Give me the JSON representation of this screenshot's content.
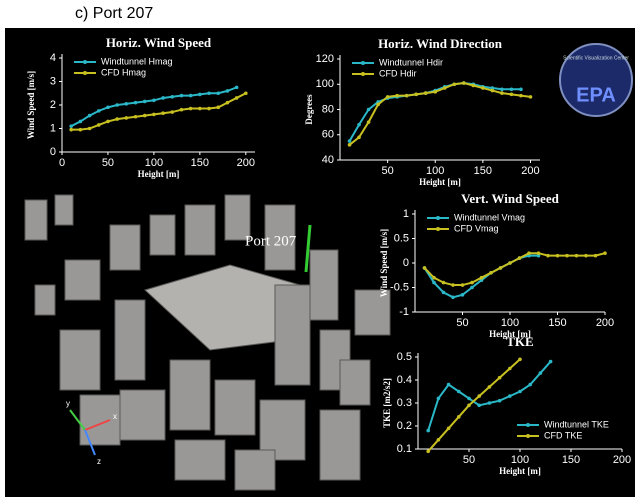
{
  "caption": "c) Port 207",
  "scene_label": "Port 207",
  "axes_labels": [
    "y",
    "x",
    "z"
  ],
  "logo": {
    "ring_text": "Scientific Visualization Center",
    "name": "EPA"
  },
  "chart_data": [
    {
      "type": "line",
      "title": "Horiz. Wind Speed",
      "x_label": "Height [m]",
      "y_label": "Wind Speed [m/s]",
      "x": [
        10,
        20,
        30,
        40,
        50,
        60,
        70,
        80,
        90,
        100,
        110,
        120,
        130,
        140,
        150,
        160,
        170,
        180,
        190,
        200
      ],
      "series": [
        {
          "name": "Windtunnel Hmag",
          "color": "#2ab8c8",
          "values": [
            1.1,
            1.3,
            1.55,
            1.75,
            1.9,
            2.0,
            2.05,
            2.1,
            2.15,
            2.2,
            2.3,
            2.35,
            2.4,
            2.4,
            2.45,
            2.5,
            2.5,
            2.6,
            2.75,
            null
          ]
        },
        {
          "name": "CFD Hmag",
          "color": "#c8c020",
          "values": [
            0.95,
            0.95,
            1.0,
            1.15,
            1.3,
            1.4,
            1.45,
            1.5,
            1.55,
            1.6,
            1.65,
            1.7,
            1.8,
            1.85,
            1.85,
            1.85,
            1.9,
            2.1,
            2.3,
            2.5
          ]
        }
      ],
      "xlim": [
        0,
        210
      ],
      "ylim": [
        0,
        4
      ],
      "xticks": [
        0,
        50,
        100,
        150,
        200
      ],
      "yticks": [
        0,
        1,
        2,
        3,
        4
      ],
      "legend": "upper left"
    },
    {
      "type": "line",
      "title": "Horiz. Wind Direction",
      "x_label": "Height [m]",
      "y_label": "Degrees",
      "x": [
        10,
        20,
        30,
        40,
        50,
        60,
        70,
        80,
        90,
        100,
        110,
        120,
        130,
        140,
        150,
        160,
        170,
        180,
        190,
        200
      ],
      "series": [
        {
          "name": "Windtunnel Hdir",
          "color": "#2ab8c8",
          "values": [
            55,
            68,
            80,
            86,
            89,
            90,
            91,
            92,
            93,
            95,
            98,
            100,
            101,
            100,
            98,
            97,
            96,
            96,
            96,
            null
          ]
        },
        {
          "name": "CFD Hdir",
          "color": "#c8c020",
          "values": [
            52,
            58,
            70,
            84,
            90,
            91,
            91,
            92,
            93,
            94,
            97,
            100,
            101,
            99,
            97,
            95,
            93,
            92,
            91,
            90
          ]
        }
      ],
      "xlim": [
        0,
        210
      ],
      "ylim": [
        40,
        120
      ],
      "xticks": [
        50,
        100,
        150,
        200
      ],
      "yticks": [
        40,
        60,
        80,
        100,
        120
      ],
      "legend": "upper left"
    },
    {
      "type": "line",
      "title": "Vert. Wind Speed",
      "x_label": "Height [m]",
      "y_label": "Wind Speed [m/s]",
      "x": [
        10,
        20,
        30,
        40,
        50,
        60,
        70,
        80,
        90,
        100,
        110,
        120,
        130,
        140,
        150,
        160,
        170,
        180,
        190,
        200
      ],
      "series": [
        {
          "name": "Windtunnel Vmag",
          "color": "#2ab8c8",
          "values": [
            -0.1,
            -0.4,
            -0.6,
            -0.7,
            -0.65,
            -0.5,
            -0.35,
            -0.2,
            -0.1,
            0,
            0.1,
            0.15,
            0.15,
            null,
            null,
            null,
            null,
            null,
            null,
            null
          ]
        },
        {
          "name": "CFD Vmag",
          "color": "#c8c020",
          "values": [
            -0.1,
            -0.3,
            -0.4,
            -0.45,
            -0.45,
            -0.4,
            -0.3,
            -0.2,
            -0.1,
            0,
            0.1,
            0.2,
            0.2,
            0.15,
            0.15,
            0.15,
            0.15,
            0.15,
            0.15,
            0.2
          ]
        }
      ],
      "xlim": [
        0,
        200
      ],
      "ylim": [
        -1,
        1
      ],
      "xticks": [
        50,
        100,
        150,
        200
      ],
      "yticks": [
        -1,
        -0.5,
        0,
        0.5,
        1
      ],
      "legend": "upper left"
    },
    {
      "type": "line",
      "title": "TKE",
      "x_label": "Height [m]",
      "y_label": "TKE [m2/s2]",
      "x": [
        10,
        20,
        30,
        40,
        50,
        60,
        70,
        80,
        90,
        100,
        110,
        120,
        130
      ],
      "series": [
        {
          "name": "Windtunnel TKE",
          "color": "#2ab8c8",
          "values": [
            0.18,
            0.32,
            0.38,
            0.35,
            0.32,
            0.29,
            0.3,
            0.31,
            0.33,
            0.35,
            0.38,
            0.43,
            0.48
          ]
        },
        {
          "name": "CFD TKE",
          "color": "#c8c020",
          "values": [
            0.09,
            0.14,
            0.19,
            0.24,
            0.29,
            0.33,
            0.37,
            0.41,
            0.45,
            0.49,
            null,
            null,
            null
          ]
        }
      ],
      "xlim": [
        0,
        200
      ],
      "ylim": [
        0.1,
        0.5
      ],
      "xticks": [
        50,
        100,
        150,
        200
      ],
      "yticks": [
        0.1,
        0.2,
        0.3,
        0.4,
        0.5
      ],
      "legend": "lower right"
    }
  ]
}
